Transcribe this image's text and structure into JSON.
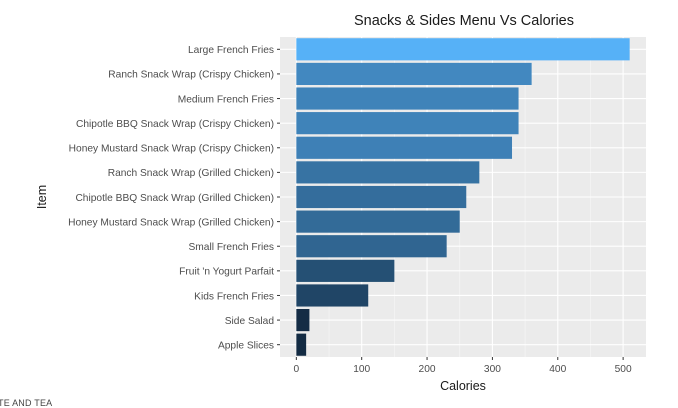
{
  "chart_data": {
    "type": "bar",
    "orientation": "horizontal",
    "title": "Snacks & Sides Menu Vs Calories",
    "xlabel": "Calories",
    "ylabel": "Item",
    "categories": [
      "Large French Fries",
      "Ranch Snack Wrap (Crispy Chicken)",
      "Medium French Fries",
      "Chipotle BBQ Snack Wrap (Crispy Chicken)",
      "Honey Mustard Snack Wrap (Crispy Chicken)",
      "Ranch Snack Wrap (Grilled Chicken)",
      "Chipotle BBQ Snack Wrap (Grilled Chicken)",
      "Honey Mustard Snack Wrap (Grilled Chicken)",
      "Small French Fries",
      "Fruit 'n Yogurt Parfait",
      "Kids French Fries",
      "Side Salad",
      "Apple Slices"
    ],
    "values": [
      510,
      360,
      340,
      340,
      330,
      280,
      260,
      250,
      230,
      150,
      110,
      20,
      15
    ],
    "xlim": [
      -25,
      535
    ],
    "xticks": [
      0,
      100,
      200,
      300,
      400,
      500
    ],
    "grid": true,
    "legend": "none",
    "color_low": "#132B43",
    "color_high": "#56B1F7",
    "panel_background": "#EBEBEB"
  },
  "footer": {
    "text": "TE AND TEA"
  }
}
